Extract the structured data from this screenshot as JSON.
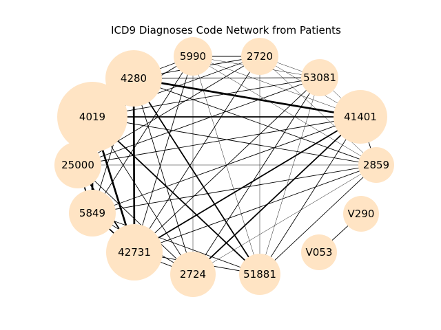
{
  "title": "ICD9 Diagnoses Code Network from Patients",
  "colors": {
    "node_fill": "#ffe4c4",
    "edge": "#000000",
    "background": "#ffffff"
  },
  "nodes": [
    {
      "id": "4280",
      "label": "4280",
      "weight": 5
    },
    {
      "id": "5990",
      "label": "5990",
      "weight": 2
    },
    {
      "id": "2720",
      "label": "2720",
      "weight": 2
    },
    {
      "id": "53081",
      "label": "53081",
      "weight": 2
    },
    {
      "id": "41401",
      "label": "41401",
      "weight": 4
    },
    {
      "id": "4019",
      "label": "4019",
      "weight": 7
    },
    {
      "id": "25000",
      "label": "25000",
      "weight": 3
    },
    {
      "id": "2859",
      "label": "2859",
      "weight": 2
    },
    {
      "id": "V290",
      "label": "V290",
      "weight": 1
    },
    {
      "id": "5849",
      "label": "5849",
      "weight": 3
    },
    {
      "id": "42731",
      "label": "42731",
      "weight": 5
    },
    {
      "id": "V053",
      "label": "V053",
      "weight": 1
    },
    {
      "id": "2724",
      "label": "2724",
      "weight": 3
    },
    {
      "id": "51881",
      "label": "51881",
      "weight": 3
    }
  ],
  "edges": [
    {
      "source": "4280",
      "target": "41401",
      "weight": 3
    },
    {
      "source": "4280",
      "target": "42731",
      "weight": 3
    },
    {
      "source": "4280",
      "target": "53081",
      "weight": 1
    },
    {
      "source": "4280",
      "target": "51881",
      "weight": 2
    },
    {
      "source": "4280",
      "target": "2724",
      "weight": 1
    },
    {
      "source": "4280",
      "target": "5849",
      "weight": 1
    },
    {
      "source": "4280",
      "target": "2720",
      "weight": 1
    },
    {
      "source": "4280",
      "target": "5990",
      "weight": 1
    },
    {
      "source": "4280",
      "target": "2859",
      "weight": 1
    },
    {
      "source": "4280",
      "target": "4019",
      "weight": 2
    },
    {
      "source": "4280",
      "target": "25000",
      "weight": 1
    },
    {
      "source": "4019",
      "target": "41401",
      "weight": 2
    },
    {
      "source": "4019",
      "target": "42731",
      "weight": 3
    },
    {
      "source": "4019",
      "target": "5849",
      "weight": 3
    },
    {
      "source": "4019",
      "target": "25000",
      "weight": 2
    },
    {
      "source": "4019",
      "target": "51881",
      "weight": 2
    },
    {
      "source": "4019",
      "target": "2724",
      "weight": 1
    },
    {
      "source": "4019",
      "target": "2720",
      "weight": 1
    },
    {
      "source": "4019",
      "target": "5990",
      "weight": 1
    },
    {
      "source": "4019",
      "target": "53081",
      "weight": 1
    },
    {
      "source": "4019",
      "target": "2859",
      "weight": 1
    },
    {
      "source": "25000",
      "target": "5849",
      "weight": 2
    },
    {
      "source": "25000",
      "target": "41401",
      "weight": 1
    },
    {
      "source": "25000",
      "target": "2720",
      "weight": 1
    },
    {
      "source": "25000",
      "target": "2724",
      "weight": 1
    },
    {
      "source": "25000",
      "target": "42731",
      "weight": 2
    },
    {
      "source": "25000",
      "target": "2859",
      "weight": 0.5
    },
    {
      "source": "25000",
      "target": "53081",
      "weight": 1
    },
    {
      "source": "5849",
      "target": "42731",
      "weight": 2
    },
    {
      "source": "5849",
      "target": "51881",
      "weight": 1
    },
    {
      "source": "5849",
      "target": "41401",
      "weight": 1
    },
    {
      "source": "5849",
      "target": "2859",
      "weight": 1
    },
    {
      "source": "5849",
      "target": "2724",
      "weight": 1
    },
    {
      "source": "5849",
      "target": "5990",
      "weight": 1
    },
    {
      "source": "42731",
      "target": "41401",
      "weight": 2
    },
    {
      "source": "42731",
      "target": "2724",
      "weight": 1
    },
    {
      "source": "42731",
      "target": "51881",
      "weight": 1
    },
    {
      "source": "42731",
      "target": "2859",
      "weight": 1
    },
    {
      "source": "42731",
      "target": "5990",
      "weight": 1
    },
    {
      "source": "42731",
      "target": "53081",
      "weight": 1
    },
    {
      "source": "42731",
      "target": "2720",
      "weight": 1
    },
    {
      "source": "2724",
      "target": "41401",
      "weight": 2
    },
    {
      "source": "2724",
      "target": "53081",
      "weight": 1
    },
    {
      "source": "2724",
      "target": "2859",
      "weight": 0.5
    },
    {
      "source": "2724",
      "target": "5990",
      "weight": 0.5
    },
    {
      "source": "51881",
      "target": "41401",
      "weight": 1
    },
    {
      "source": "51881",
      "target": "2859",
      "weight": 1
    },
    {
      "source": "51881",
      "target": "5990",
      "weight": 0.5
    },
    {
      "source": "51881",
      "target": "53081",
      "weight": 0.5
    },
    {
      "source": "51881",
      "target": "2720",
      "weight": 0.5
    },
    {
      "source": "5990",
      "target": "2720",
      "weight": 1
    },
    {
      "source": "5990",
      "target": "53081",
      "weight": 0.5
    },
    {
      "source": "5990",
      "target": "41401",
      "weight": 0.5
    },
    {
      "source": "5990",
      "target": "2859",
      "weight": 0.5
    },
    {
      "source": "2720",
      "target": "53081",
      "weight": 0.5
    },
    {
      "source": "2720",
      "target": "41401",
      "weight": 0.5
    },
    {
      "source": "2720",
      "target": "2859",
      "weight": 0.5
    },
    {
      "source": "53081",
      "target": "41401",
      "weight": 0.5
    },
    {
      "source": "41401",
      "target": "2859",
      "weight": 1
    },
    {
      "source": "V053",
      "target": "V290",
      "weight": 1
    }
  ]
}
